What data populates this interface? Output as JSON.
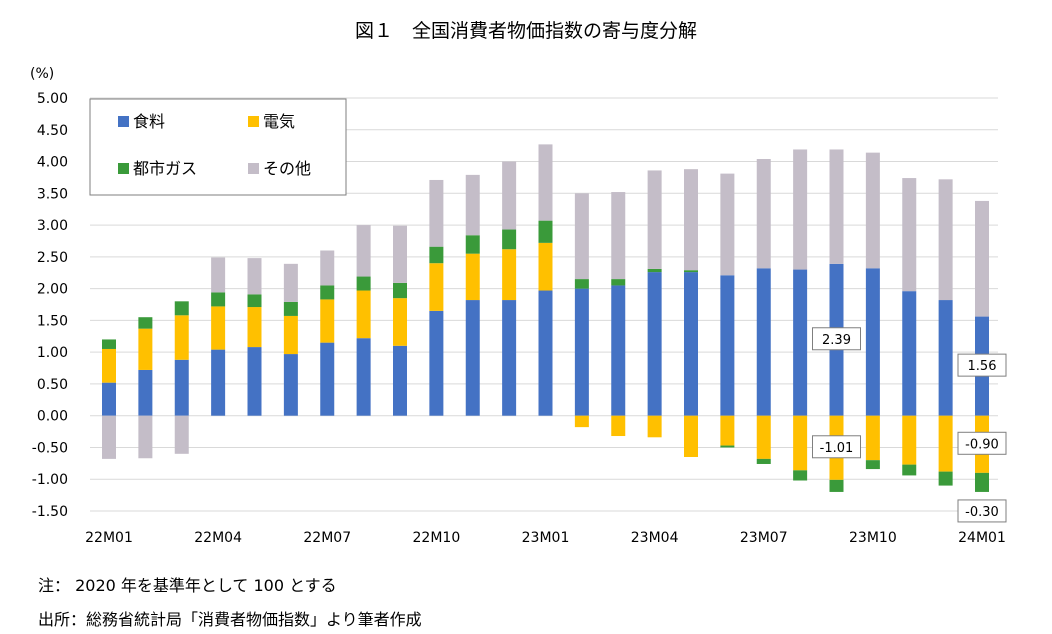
{
  "title": "図１　全国消費者物価指数の寄与度分解",
  "unit_label": "(%)",
  "note": "注：  2020 年を基準年として 100 とする",
  "source": "出所：総務省統計局「消費者物価指数」より筆者作成",
  "chart_data": {
    "type": "bar",
    "stacked": true,
    "title": "図１　全国消費者物価指数の寄与度分解",
    "ylabel": "(%)",
    "ylim": [
      -1.5,
      5.0
    ],
    "yticks": [
      "5.00",
      "4.50",
      "4.00",
      "3.50",
      "3.00",
      "2.50",
      "2.00",
      "1.50",
      "1.00",
      "0.50",
      "0.00",
      "-0.50",
      "-1.00",
      "-1.50"
    ],
    "ytick_values": [
      5.0,
      4.5,
      4.0,
      3.5,
      3.0,
      2.5,
      2.0,
      1.5,
      1.0,
      0.5,
      0.0,
      -0.5,
      -1.0,
      -1.5
    ],
    "xtick_labels": [
      "22M01",
      "22M04",
      "22M07",
      "22M10",
      "23M01",
      "23M04",
      "23M07",
      "23M10",
      "24M01"
    ],
    "xtick_positions": [
      0,
      3,
      6,
      9,
      12,
      15,
      18,
      21,
      24
    ],
    "categories": [
      "22M01",
      "22M02",
      "22M03",
      "22M04",
      "22M05",
      "22M06",
      "22M07",
      "22M08",
      "22M09",
      "22M10",
      "22M11",
      "22M12",
      "23M01",
      "23M02",
      "23M03",
      "23M04",
      "23M05",
      "23M06",
      "23M07",
      "23M08",
      "23M09",
      "23M10",
      "23M11",
      "23M12",
      "24M01"
    ],
    "grid": true,
    "legend_position": "top-left",
    "series": [
      {
        "name": "食料",
        "color": "#4472C4",
        "values": [
          0.52,
          0.72,
          0.88,
          1.04,
          1.08,
          0.97,
          1.15,
          1.22,
          1.1,
          1.65,
          1.82,
          1.82,
          1.97,
          2.0,
          2.05,
          2.26,
          2.26,
          2.21,
          2.32,
          2.3,
          2.39,
          2.32,
          1.96,
          1.82,
          1.56
        ]
      },
      {
        "name": "電気",
        "color": "#FFC000",
        "values": [
          0.53,
          0.65,
          0.7,
          0.68,
          0.63,
          0.6,
          0.68,
          0.75,
          0.75,
          0.75,
          0.73,
          0.8,
          0.75,
          -0.18,
          -0.32,
          -0.34,
          -0.65,
          -0.47,
          -0.68,
          -0.86,
          -1.01,
          -0.7,
          -0.77,
          -0.88,
          -0.9
        ]
      },
      {
        "name": "都市ガス",
        "color": "#3A9A3A",
        "values": [
          0.15,
          0.18,
          0.22,
          0.22,
          0.2,
          0.22,
          0.22,
          0.22,
          0.24,
          0.26,
          0.29,
          0.31,
          0.35,
          0.15,
          0.1,
          0.05,
          0.03,
          -0.03,
          -0.08,
          -0.16,
          -0.19,
          -0.14,
          -0.17,
          -0.22,
          -0.3
        ]
      },
      {
        "name": "その他",
        "color": "#C4BDC8",
        "values": [
          -0.68,
          -0.67,
          -0.6,
          0.55,
          0.57,
          0.6,
          0.55,
          0.81,
          0.9,
          1.05,
          0.95,
          1.07,
          1.2,
          1.35,
          1.37,
          1.55,
          1.59,
          1.6,
          1.72,
          1.89,
          1.8,
          1.82,
          1.78,
          1.9,
          1.82
        ]
      }
    ],
    "annotations": [
      {
        "category": "23M09",
        "series": "食料",
        "label": "2.39"
      },
      {
        "category": "23M09",
        "series": "電気",
        "label": "-1.01"
      },
      {
        "category": "24M01",
        "series": "食料",
        "label": "1.56"
      },
      {
        "category": "24M01",
        "series": "電気",
        "label": "-0.90"
      },
      {
        "category": "24M01",
        "series": "都市ガス",
        "label": "-0.30"
      }
    ]
  }
}
